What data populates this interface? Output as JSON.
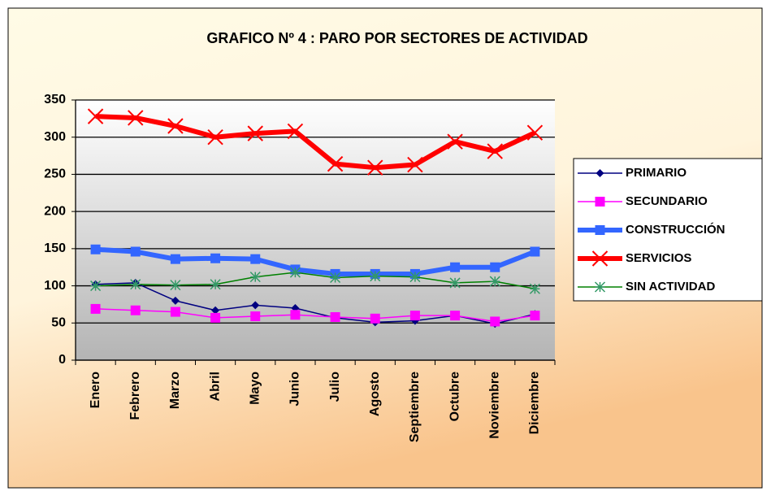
{
  "chart_data": {
    "type": "line",
    "title": "GRAFICO Nº 4  : PARO POR SECTORES DE ACTIVIDAD",
    "categories": [
      "Enero",
      "Febrero",
      "Marzo",
      "Abril",
      "Mayo",
      "Junio",
      "Julio",
      "Agosto",
      "Septiembre",
      "Octubre",
      "Noviembre",
      "Diciembre"
    ],
    "series": [
      {
        "name": "PRIMARIO",
        "color": "#000080",
        "marker": "diamond",
        "values": [
          102,
          104,
          80,
          67,
          74,
          70,
          57,
          51,
          53,
          60,
          49,
          62
        ]
      },
      {
        "name": "SECUNDARIO",
        "color": "#ff00ff",
        "marker": "square",
        "values": [
          69,
          67,
          65,
          57,
          59,
          61,
          58,
          56,
          60,
          60,
          52,
          60
        ]
      },
      {
        "name": "CONSTRUCCIÓN",
        "color": "#3366ff",
        "marker": "square",
        "values": [
          149,
          146,
          136,
          137,
          136,
          122,
          116,
          116,
          116,
          125,
          125,
          146
        ]
      },
      {
        "name": "SERVICIOS",
        "color": "#ff0000",
        "marker": "x",
        "values": [
          328,
          326,
          315,
          300,
          305,
          308,
          264,
          259,
          263,
          294,
          281,
          306
        ]
      },
      {
        "name": "SIN ACTIVIDAD",
        "color": "#008000",
        "marker": "star",
        "values": [
          100,
          102,
          101,
          102,
          112,
          118,
          111,
          113,
          112,
          104,
          106,
          96
        ]
      }
    ],
    "ylim": [
      0,
      350
    ],
    "yticks": [
      0,
      50,
      100,
      150,
      200,
      250,
      300,
      350
    ],
    "grid": true,
    "legend": "right"
  }
}
